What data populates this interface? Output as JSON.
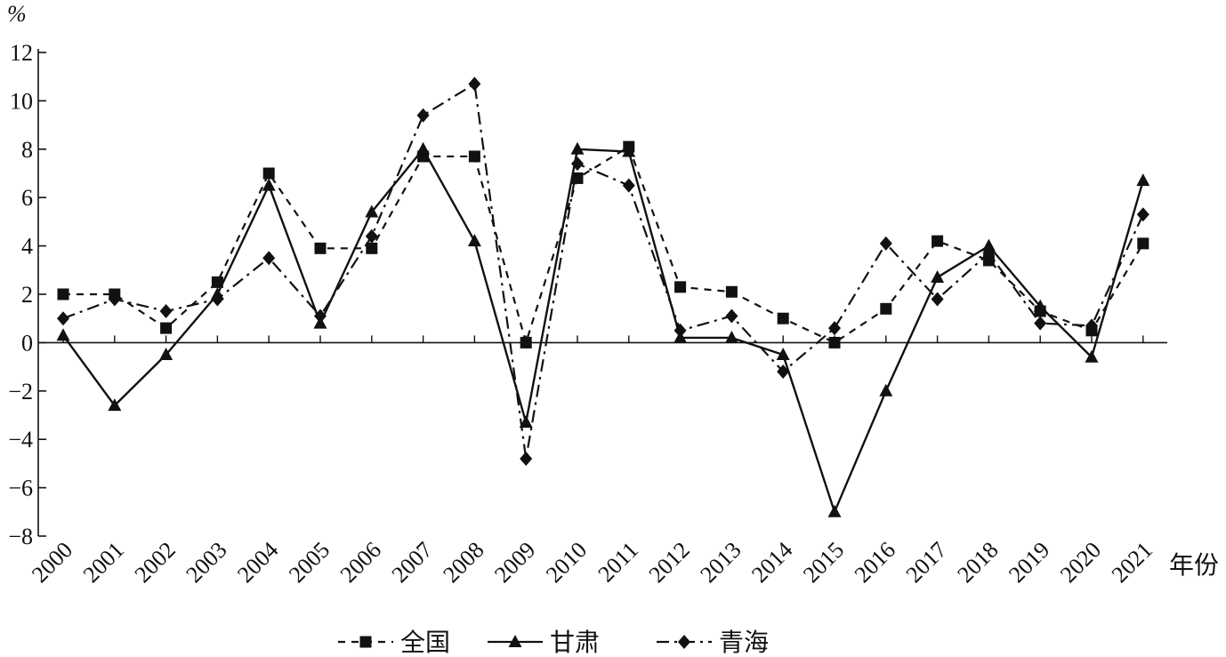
{
  "chart_data": {
    "type": "line",
    "y_unit": "%",
    "xlabel": "年份",
    "ylim": [
      -8,
      12
    ],
    "y_ticks": [
      -8,
      -6,
      -4,
      -2,
      0,
      2,
      4,
      6,
      8,
      10,
      12
    ],
    "y_tick_labels": [
      "−8",
      "−6",
      "−4",
      "−2",
      "0",
      "2",
      "4",
      "6",
      "8",
      "10",
      "12"
    ],
    "categories": [
      "2000",
      "2001",
      "2002",
      "2003",
      "2004",
      "2005",
      "2006",
      "2007",
      "2008",
      "2009",
      "2010",
      "2011",
      "2012",
      "2013",
      "2014",
      "2015",
      "2016",
      "2017",
      "2018",
      "2019",
      "2020",
      "2021"
    ],
    "series": [
      {
        "name": "全国",
        "marker": "square",
        "dash": "dash",
        "values": [
          2.0,
          2.0,
          0.6,
          2.5,
          7.0,
          3.9,
          3.9,
          7.7,
          7.7,
          0.0,
          6.8,
          8.1,
          2.3,
          2.1,
          1.0,
          0.0,
          1.4,
          4.2,
          3.4,
          1.3,
          0.5,
          4.1
        ]
      },
      {
        "name": "甘肃",
        "marker": "triangle",
        "dash": "solid",
        "values": [
          0.3,
          -2.6,
          -0.5,
          2.0,
          6.5,
          0.8,
          5.4,
          8.0,
          4.2,
          -3.3,
          8.0,
          7.9,
          0.2,
          0.2,
          -0.5,
          -7.0,
          -2.0,
          2.7,
          4.0,
          1.5,
          -0.6,
          6.7
        ]
      },
      {
        "name": "青海",
        "marker": "diamond",
        "dash": "dashdot",
        "values": [
          1.0,
          1.8,
          1.3,
          1.8,
          3.5,
          1.1,
          4.4,
          9.4,
          10.7,
          -4.8,
          7.4,
          6.5,
          0.5,
          1.1,
          -1.2,
          0.6,
          4.1,
          1.8,
          3.7,
          0.8,
          0.7,
          5.3
        ]
      }
    ],
    "grid": false,
    "legend_position": "bottom-center"
  }
}
